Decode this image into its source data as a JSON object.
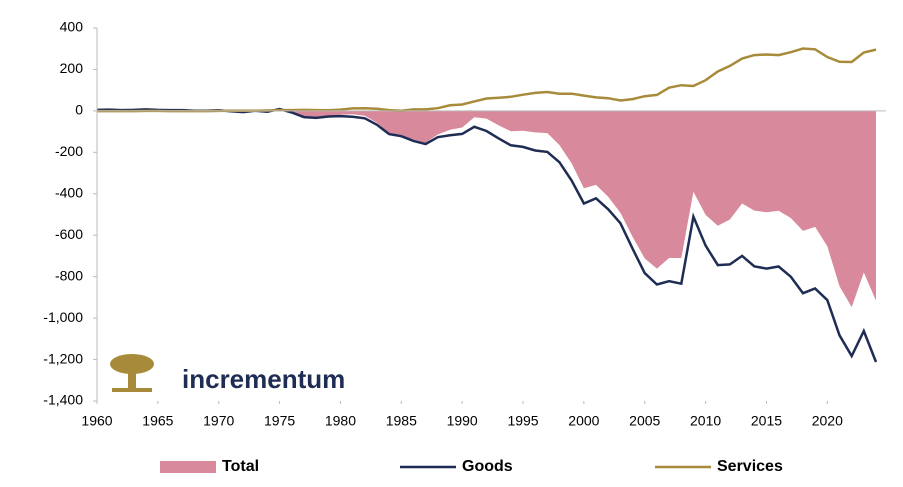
{
  "chart_data": {
    "type": "line",
    "logo": "incrementum",
    "x": [
      1960,
      1961,
      1962,
      1963,
      1964,
      1965,
      1966,
      1967,
      1968,
      1969,
      1970,
      1971,
      1972,
      1973,
      1974,
      1975,
      1976,
      1977,
      1978,
      1979,
      1980,
      1981,
      1982,
      1983,
      1984,
      1985,
      1986,
      1987,
      1988,
      1989,
      1990,
      1991,
      1992,
      1993,
      1994,
      1995,
      1996,
      1997,
      1998,
      1999,
      2000,
      2001,
      2002,
      2003,
      2004,
      2005,
      2006,
      2007,
      2008,
      2009,
      2010,
      2011,
      2012,
      2013,
      2014,
      2015,
      2016,
      2017,
      2018,
      2019,
      2020,
      2021,
      2022,
      2023,
      2024
    ],
    "series": [
      {
        "name": "Total",
        "color": "#d8899b",
        "fill": "area",
        "values": [
          4,
          5,
          3,
          4,
          7,
          5,
          3,
          3,
          0,
          0,
          3,
          -1,
          -5,
          2,
          -2,
          13,
          -4,
          -25,
          -30,
          -24,
          -19,
          -16,
          -23,
          -57,
          -108,
          -121,
          -138,
          -153,
          -114,
          -91,
          -80,
          -31,
          -37,
          -70,
          -98,
          -96,
          -104,
          -107,
          -165,
          -254,
          -373,
          -357,
          -414,
          -492,
          -608,
          -712,
          -761,
          -710,
          -710,
          -390,
          -502,
          -554,
          -524,
          -447,
          -481,
          -489,
          -482,
          -517,
          -579,
          -560,
          -653,
          -846,
          -947,
          -780,
          -916
        ]
      },
      {
        "name": "Goods",
        "color": "#1f2d54",
        "values": [
          5,
          6,
          4,
          5,
          7,
          5,
          4,
          4,
          1,
          1,
          3,
          -2,
          -6,
          1,
          -4,
          9,
          -8,
          -30,
          -34,
          -27,
          -25,
          -28,
          -36,
          -67,
          -112,
          -122,
          -145,
          -160,
          -127,
          -118,
          -111,
          -77,
          -97,
          -133,
          -166,
          -174,
          -191,
          -198,
          -248,
          -337,
          -447,
          -422,
          -475,
          -542,
          -665,
          -783,
          -838,
          -822,
          -834,
          -510,
          -650,
          -744,
          -741,
          -700,
          -750,
          -761,
          -751,
          -800,
          -880,
          -857,
          -913,
          -1083,
          -1183,
          -1062,
          -1212
        ]
      },
      {
        "name": "Services",
        "color": "#a88b3a",
        "values": [
          -1,
          -1,
          -1,
          -1,
          0,
          0,
          -1,
          -1,
          -1,
          -1,
          0,
          1,
          1,
          1,
          2,
          4,
          4,
          5,
          4,
          3,
          6,
          12,
          13,
          10,
          4,
          1,
          7,
          7,
          13,
          27,
          31,
          46,
          60,
          63,
          68,
          78,
          87,
          91,
          83,
          83,
          74,
          65,
          61,
          50,
          57,
          71,
          77,
          112,
          124,
          120,
          148,
          190,
          217,
          253,
          269,
          272,
          269,
          283,
          301,
          297,
          260,
          237,
          236,
          282,
          296
        ]
      }
    ],
    "xlim": [
      1960,
      2024
    ],
    "xticks": [
      1960,
      1965,
      1970,
      1975,
      1980,
      1985,
      1990,
      1995,
      2000,
      2005,
      2010,
      2015,
      2020
    ],
    "ylim": [
      -1400,
      400
    ],
    "yticks": [
      400,
      200,
      0,
      -200,
      -400,
      -600,
      -800,
      {
        "value": -1000,
        "label": "-1,000"
      },
      {
        "value": -1200,
        "label": "-1,200"
      },
      {
        "value": -1400,
        "label": "-1,400"
      }
    ],
    "legend": "bottom"
  }
}
